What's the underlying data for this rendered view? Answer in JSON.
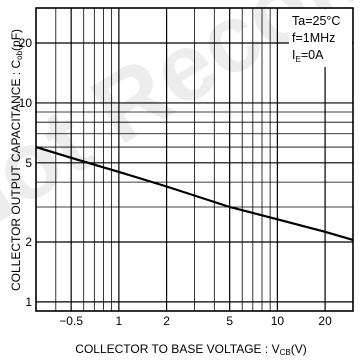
{
  "watermark": "Not Recommended for New Design",
  "chart_data": {
    "type": "line",
    "title": "",
    "xlabel": "COLLECTOR TO BASE VOLTAGE : V",
    "xlabel_sub": "CB",
    "xlabel_unit": "(V)",
    "ylabel": "COLLECTOR OUTPUT CAPACITANCE : C",
    "ylabel_sub": "ob",
    "ylabel_unit": "(pF)",
    "x_scale": "log",
    "y_scale": "log",
    "xlim": [
      0.3,
      30
    ],
    "ylim": [
      0.9,
      30
    ],
    "grid": true,
    "x_ticks": [
      {
        "value": 0.5,
        "label": "−0.5"
      },
      {
        "value": 1,
        "label": "1"
      },
      {
        "value": 2,
        "label": "2"
      },
      {
        "value": 5,
        "label": "5"
      },
      {
        "value": 10,
        "label": "10"
      },
      {
        "value": 20,
        "label": "20"
      }
    ],
    "y_ticks": [
      {
        "value": 1,
        "label": "1"
      },
      {
        "value": 2,
        "label": "2"
      },
      {
        "value": 5,
        "label": "5"
      },
      {
        "value": 10,
        "label": "10"
      },
      {
        "value": 20,
        "label": "20"
      }
    ],
    "conditions": [
      {
        "text": "Ta=25°C"
      },
      {
        "text": "f=1MHz"
      },
      {
        "text": "I",
        "sub": "E",
        "rest": "=0A"
      }
    ],
    "series": [
      {
        "x": [
          0.3,
          0.5,
          1,
          2,
          5,
          10,
          20,
          30
        ],
        "y": [
          6.0,
          5.3,
          4.5,
          3.8,
          3.0,
          2.6,
          2.25,
          2.05
        ]
      }
    ]
  }
}
